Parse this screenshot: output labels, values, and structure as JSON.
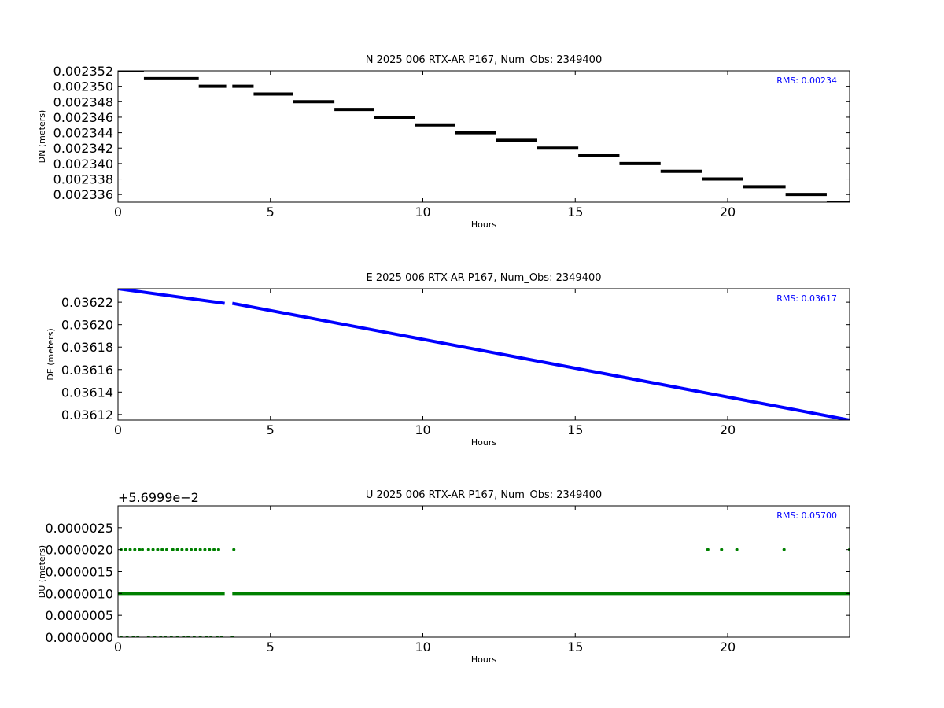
{
  "colors": {
    "north": "#000000",
    "east": "#0000ff",
    "up": "#008000",
    "rms": "#0000ff"
  },
  "chart_data": [
    {
      "type": "scatter",
      "title": "N 2025 006 RTX-AR  P167, Num_Obs: 2349400",
      "xlabel": "Hours",
      "ylabel": "DN (meters)",
      "annotation": "RMS:  0.00234",
      "xlim": [
        0,
        24
      ],
      "ylim": [
        0.002335,
        0.002352
      ],
      "xticks": [
        0,
        5,
        10,
        15,
        20
      ],
      "xtick_labels": [
        "0",
        "5",
        "10",
        "15",
        "20"
      ],
      "yticks": [
        0.002336,
        0.002338,
        0.00234,
        0.002342,
        0.002344,
        0.002346,
        0.002348,
        0.00235,
        0.002352
      ],
      "ytick_labels": [
        "0.002336",
        "0.002338",
        "0.002340",
        "0.002342",
        "0.002344",
        "0.002346",
        "0.002348",
        "0.002350",
        "0.002352"
      ],
      "grid": false,
      "series": [
        {
          "color": "#000000",
          "segments": [
            {
              "x": [
                0.0,
                0.85
              ],
              "y": 0.002352
            },
            {
              "x": [
                0.85,
                2.65
              ],
              "y": 0.002351
            },
            {
              "x": [
                2.65,
                3.55
              ],
              "y": 0.00235
            },
            {
              "x": [
                3.75,
                4.45
              ],
              "y": 0.00235
            },
            {
              "x": [
                4.45,
                5.75
              ],
              "y": 0.002349
            },
            {
              "x": [
                5.75,
                7.1
              ],
              "y": 0.002348
            },
            {
              "x": [
                7.1,
                8.4
              ],
              "y": 0.002347
            },
            {
              "x": [
                8.4,
                9.75
              ],
              "y": 0.002346
            },
            {
              "x": [
                9.75,
                11.05
              ],
              "y": 0.002345
            },
            {
              "x": [
                11.05,
                12.4
              ],
              "y": 0.002344
            },
            {
              "x": [
                12.4,
                13.75
              ],
              "y": 0.002343
            },
            {
              "x": [
                13.75,
                15.1
              ],
              "y": 0.002342
            },
            {
              "x": [
                15.1,
                16.45
              ],
              "y": 0.002341
            },
            {
              "x": [
                16.45,
                17.8
              ],
              "y": 0.00234
            },
            {
              "x": [
                17.8,
                19.15
              ],
              "y": 0.002339
            },
            {
              "x": [
                19.15,
                20.5
              ],
              "y": 0.002338
            },
            {
              "x": [
                20.5,
                21.9
              ],
              "y": 0.002337
            },
            {
              "x": [
                21.9,
                23.25
              ],
              "y": 0.002336
            },
            {
              "x": [
                23.25,
                24.0
              ],
              "y": 0.002335
            }
          ]
        }
      ]
    },
    {
      "type": "scatter",
      "title": "E 2025 006 RTX-AR  P167, Num_Obs: 2349400",
      "xlabel": "Hours",
      "ylabel": "DE (meters)",
      "annotation": "RMS:  0.03617",
      "xlim": [
        0,
        24
      ],
      "ylim": [
        0.036115,
        0.036232
      ],
      "xticks": [
        0,
        5,
        10,
        15,
        20
      ],
      "xtick_labels": [
        "0",
        "5",
        "10",
        "15",
        "20"
      ],
      "yticks": [
        0.03612,
        0.03614,
        0.03616,
        0.03618,
        0.0362,
        0.03622
      ],
      "ytick_labels": [
        "0.03612",
        "0.03614",
        "0.03616",
        "0.03618",
        "0.03620",
        "0.03622"
      ],
      "grid": false,
      "series": [
        {
          "color": "#0000ff",
          "segments": [
            {
              "x": [
                0.0,
                3.5
              ],
              "y": [
                0.036232,
                0.036219
              ]
            },
            {
              "x": [
                3.75,
                24.0
              ],
              "y": [
                0.036219,
                0.036115
              ]
            }
          ]
        }
      ]
    },
    {
      "type": "scatter",
      "title": "U 2025 006 RTX-AR  P167, Num_Obs: 2349400",
      "xlabel": "Hours",
      "ylabel": "DU (meters)",
      "annotation": "RMS:  0.05700",
      "offset_text": "+5.6999e−2",
      "xlim": [
        0,
        24
      ],
      "ylim": [
        0.0,
        3e-06
      ],
      "xticks": [
        0,
        5,
        10,
        15,
        20
      ],
      "xtick_labels": [
        "0",
        "5",
        "10",
        "15",
        "20"
      ],
      "yticks": [
        0.0,
        5e-07,
        1e-06,
        1.5e-06,
        2e-06,
        2.5e-06
      ],
      "ytick_labels": [
        "0.0000000",
        "0.0000005",
        "0.0000010",
        "0.0000015",
        "0.0000020",
        "0.0000025"
      ],
      "grid": false,
      "series": [
        {
          "color": "#008000",
          "segments": [
            {
              "x": [
                0.0,
                3.5
              ],
              "y": 1e-06
            },
            {
              "x": [
                3.75,
                24.0
              ],
              "y": 1e-06
            }
          ],
          "points": [
            {
              "x": 0.1,
              "y": 2e-06
            },
            {
              "x": 0.25,
              "y": 2e-06
            },
            {
              "x": 0.4,
              "y": 2e-06
            },
            {
              "x": 0.55,
              "y": 2e-06
            },
            {
              "x": 0.7,
              "y": 2e-06
            },
            {
              "x": 0.8,
              "y": 2e-06
            },
            {
              "x": 1.0,
              "y": 2e-06
            },
            {
              "x": 1.15,
              "y": 2e-06
            },
            {
              "x": 1.3,
              "y": 2e-06
            },
            {
              "x": 1.45,
              "y": 2e-06
            },
            {
              "x": 1.6,
              "y": 2e-06
            },
            {
              "x": 1.8,
              "y": 2e-06
            },
            {
              "x": 1.95,
              "y": 2e-06
            },
            {
              "x": 2.1,
              "y": 2e-06
            },
            {
              "x": 2.25,
              "y": 2e-06
            },
            {
              "x": 2.4,
              "y": 2e-06
            },
            {
              "x": 2.55,
              "y": 2e-06
            },
            {
              "x": 2.7,
              "y": 2e-06
            },
            {
              "x": 2.85,
              "y": 2e-06
            },
            {
              "x": 3.0,
              "y": 2e-06
            },
            {
              "x": 3.15,
              "y": 2e-06
            },
            {
              "x": 3.3,
              "y": 2e-06
            },
            {
              "x": 3.8,
              "y": 2e-06
            },
            {
              "x": 19.35,
              "y": 2e-06
            },
            {
              "x": 19.8,
              "y": 2e-06
            },
            {
              "x": 20.3,
              "y": 2e-06
            },
            {
              "x": 21.85,
              "y": 2e-06
            },
            {
              "x": 24.0,
              "y": 2e-06
            },
            {
              "x": 0.1,
              "y": 0.0
            },
            {
              "x": 0.3,
              "y": 0.0
            },
            {
              "x": 0.5,
              "y": 0.0
            },
            {
              "x": 0.65,
              "y": 0.0
            },
            {
              "x": 1.0,
              "y": 0.0
            },
            {
              "x": 1.2,
              "y": 0.0
            },
            {
              "x": 1.4,
              "y": 0.0
            },
            {
              "x": 1.55,
              "y": 0.0
            },
            {
              "x": 1.75,
              "y": 0.0
            },
            {
              "x": 1.95,
              "y": 0.0
            },
            {
              "x": 2.15,
              "y": 0.0
            },
            {
              "x": 2.3,
              "y": 0.0
            },
            {
              "x": 2.5,
              "y": 0.0
            },
            {
              "x": 2.7,
              "y": 0.0
            },
            {
              "x": 2.9,
              "y": 0.0
            },
            {
              "x": 3.05,
              "y": 0.0
            },
            {
              "x": 3.25,
              "y": 0.0
            },
            {
              "x": 3.4,
              "y": 0.0
            },
            {
              "x": 3.75,
              "y": 0.0
            }
          ]
        }
      ]
    }
  ]
}
